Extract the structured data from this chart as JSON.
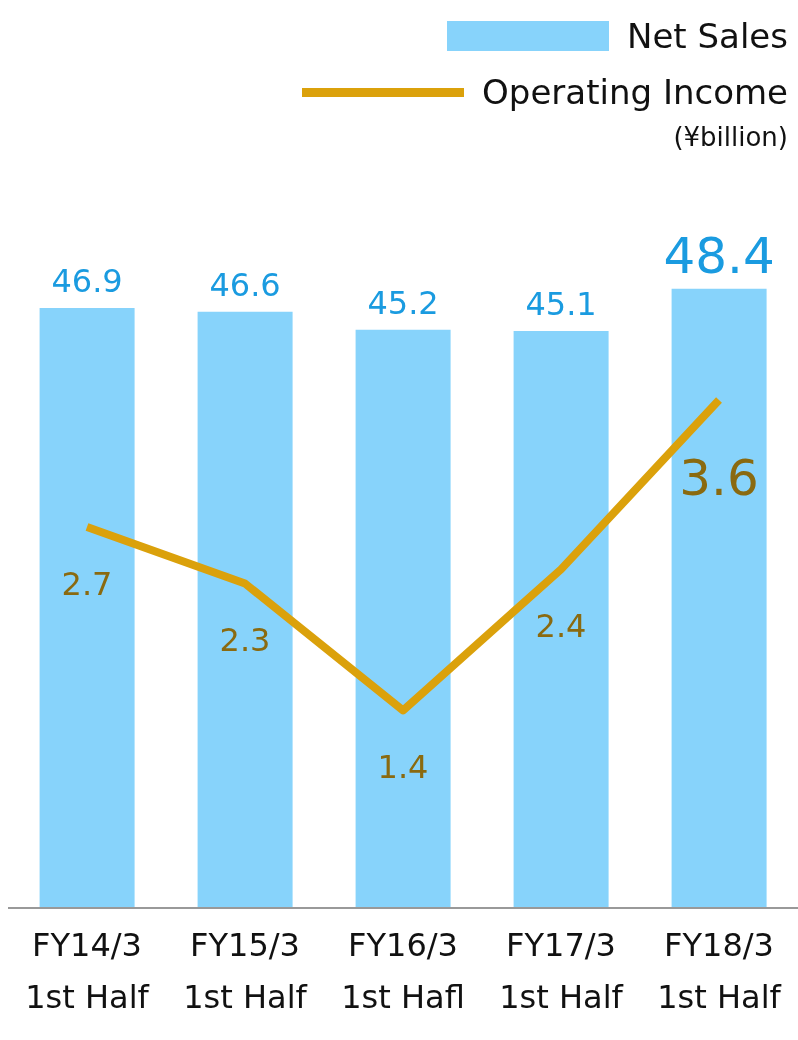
{
  "chart_data": {
    "type": "bar",
    "categories": [
      "FY14/3\n1st Half",
      "FY15/3\n1st Half",
      "FY16/3\n1st Hafl",
      "FY17/3\n1st Half",
      "FY18/3\n1st Half"
    ],
    "series": [
      {
        "name": "Net Sales",
        "color": "#87d3fb",
        "values": [
          46.9,
          46.6,
          45.2,
          45.1,
          48.4
        ]
      },
      {
        "name": "Operating Income",
        "type": "line",
        "axis": "y2",
        "color": "#dba10b",
        "values": [
          2.7,
          2.3,
          1.4,
          2.4,
          3.6
        ]
      }
    ],
    "data_labels": true,
    "legend": "top right",
    "grid": false,
    "marker": "none",
    "line_style": "solid",
    "tick_labels": "x",
    "annotations": [
      "(¥billion)"
    ]
  }
}
